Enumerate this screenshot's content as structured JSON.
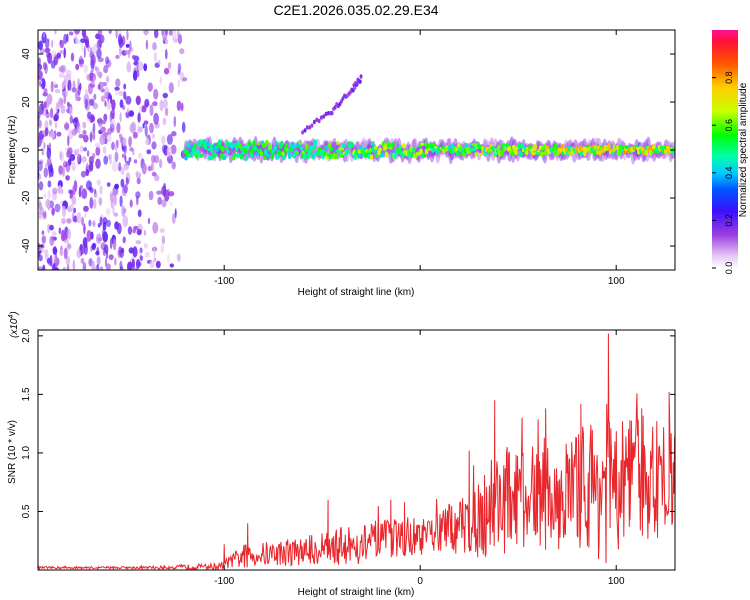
{
  "title": "C2E1.2026.035.02.29.E34",
  "colors": {
    "snr_line": "#e8262b",
    "frame": "#000000"
  },
  "chart_data": [
    {
      "type": "heatmap",
      "xlabel": "Height of straight line (km)",
      "ylabel": "Frequency (Hz)",
      "xlim": [
        -195,
        130
      ],
      "ylim": [
        -50,
        50
      ],
      "x_ticks": [
        -100,
        0,
        100
      ],
      "x_tick_labels": [
        "-100",
        "",
        "100"
      ],
      "y_ticks": [
        -40,
        -20,
        0,
        20,
        40
      ],
      "y_tick_labels": [
        "-40",
        "-20",
        "0",
        "20",
        "40"
      ],
      "colorbar": {
        "label": "Normalized spectral amplitude",
        "range": [
          0,
          1
        ],
        "ticks": [
          0.0,
          0.2,
          0.4,
          0.6,
          0.8
        ],
        "tick_labels": [
          "0.0",
          "0.2",
          "0.4",
          "0.6",
          "0.8"
        ]
      },
      "features": [
        {
          "kind": "noise",
          "x_range": [
            -195,
            -120
          ],
          "y_range": [
            -50,
            50
          ],
          "amplitude": 0.15
        },
        {
          "kind": "band",
          "x_range": [
            -120,
            130
          ],
          "center_hz": 0,
          "half_width_hz": 3,
          "amplitude": [
            0.3,
            0.85
          ]
        },
        {
          "kind": "branch",
          "points": [
            [
              -60,
              8
            ],
            [
              -45,
              16
            ],
            [
              -35,
              25
            ],
            [
              -30,
              30
            ]
          ],
          "amplitude": 0.12
        }
      ]
    },
    {
      "type": "line",
      "xlabel": "Height of straight line (km)",
      "ylabel": "SNR (10 * v/v)",
      "multiplier_label": "(x10",
      "multiplier_exp": "4",
      "xlim": [
        -195,
        130
      ],
      "ylim": [
        0,
        2.05
      ],
      "x_ticks": [
        -100,
        0,
        100
      ],
      "x_tick_labels": [
        "-100",
        "0",
        "100"
      ],
      "y_ticks": [
        0.5,
        1.0,
        1.5,
        2.0
      ],
      "y_tick_labels": [
        "0.5",
        "1.0",
        "1.5",
        "2.0"
      ],
      "envelope": {
        "x": [
          -195,
          -140,
          -102,
          -90,
          -60,
          -40,
          -30,
          -20,
          -10,
          0,
          10,
          25,
          38,
          50,
          65,
          80,
          95,
          105,
          115,
          130
        ],
        "mean": [
          0.02,
          0.02,
          0.03,
          0.12,
          0.16,
          0.2,
          0.22,
          0.25,
          0.28,
          0.27,
          0.33,
          0.4,
          0.58,
          0.62,
          0.62,
          0.68,
          0.75,
          0.72,
          0.8,
          0.72
        ],
        "spread": [
          0.01,
          0.01,
          0.03,
          0.1,
          0.12,
          0.16,
          0.18,
          0.18,
          0.16,
          0.15,
          0.18,
          0.28,
          0.5,
          0.42,
          0.45,
          0.5,
          0.7,
          0.55,
          0.55,
          0.5
        ]
      },
      "peaks": [
        [
          -100,
          0.22
        ],
        [
          -88,
          0.4
        ],
        [
          -47,
          0.6
        ],
        [
          -15,
          0.6
        ],
        [
          -8,
          0.58
        ],
        [
          25,
          1.02
        ],
        [
          38,
          1.45
        ],
        [
          52,
          1.3
        ],
        [
          64,
          1.38
        ],
        [
          82,
          1.42
        ],
        [
          96,
          2.02
        ],
        [
          107,
          1.28
        ],
        [
          113,
          1.38
        ],
        [
          127,
          1.52
        ]
      ]
    }
  ]
}
